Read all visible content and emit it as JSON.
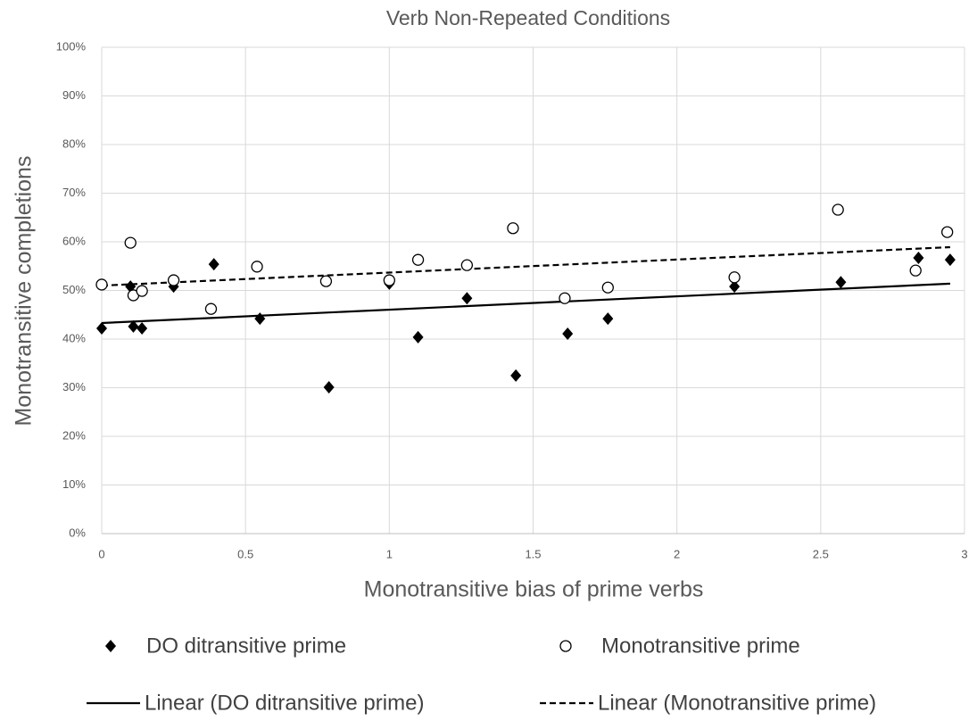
{
  "chart_data": {
    "type": "scatter",
    "title": "Verb Non-Repeated Conditions",
    "x_label": "Monotransitive bias of prime verbs",
    "y_label": "Monotransitive completions",
    "xlim": [
      0,
      3
    ],
    "xticks": [
      0,
      0.5,
      1,
      1.5,
      2,
      2.5,
      3
    ],
    "ylim": [
      0,
      100
    ],
    "yticks": [
      {
        "value": 0,
        "label": "0%"
      },
      {
        "value": 10,
        "label": "10%"
      },
      {
        "value": 20,
        "label": "20%"
      },
      {
        "value": 30,
        "label": "30%"
      },
      {
        "value": 40,
        "label": "40%"
      },
      {
        "value": 50,
        "label": "50%"
      },
      {
        "value": 60,
        "label": "60%"
      },
      {
        "value": 70,
        "label": "70%"
      },
      {
        "value": 80,
        "label": "80%"
      },
      {
        "value": 90,
        "label": "90%"
      },
      {
        "value": 100,
        "label": "100%"
      }
    ],
    "grid": true,
    "series": [
      {
        "name": "DO ditransitive prime",
        "color": "#000000",
        "marker": "diamond",
        "x": [
          0,
          0.1,
          0.11,
          0.14,
          0.25,
          0.39,
          0.55,
          0.79,
          1.0,
          1.1,
          1.27,
          1.44,
          1.62,
          1.76,
          2.2,
          2.57,
          2.84,
          2.95
        ],
        "values": [
          42.2,
          50.8,
          42.6,
          42.2,
          50.8,
          55.4,
          44.2,
          30.1,
          51.4,
          40.4,
          48.4,
          32.5,
          41.1,
          44.2,
          50.8,
          51.7,
          56.7,
          56.3
        ]
      },
      {
        "name": "Monotransitive prime",
        "color": "#000000",
        "marker": "circle",
        "x": [
          0,
          0.1,
          0.11,
          0.14,
          0.25,
          0.38,
          0.54,
          0.78,
          1.0,
          1.1,
          1.27,
          1.43,
          1.61,
          1.76,
          2.2,
          2.56,
          2.83,
          2.94
        ],
        "values": [
          51.2,
          59.8,
          49.0,
          49.9,
          52.1,
          46.2,
          54.9,
          51.9,
          52.1,
          56.3,
          55.2,
          62.8,
          48.4,
          50.6,
          52.7,
          66.6,
          54.1,
          62.0
        ]
      }
    ],
    "trendlines": [
      {
        "name": "Linear (DO ditransitive prime)",
        "color": "#000000",
        "dashed": false,
        "x": [
          0,
          2.95
        ],
        "values": [
          43.3,
          51.4
        ]
      },
      {
        "name": "Linear (Monotransitive prime)",
        "color": "#000000",
        "dashed": true,
        "x": [
          0,
          2.95
        ],
        "values": [
          51.0,
          58.9
        ]
      }
    ]
  }
}
